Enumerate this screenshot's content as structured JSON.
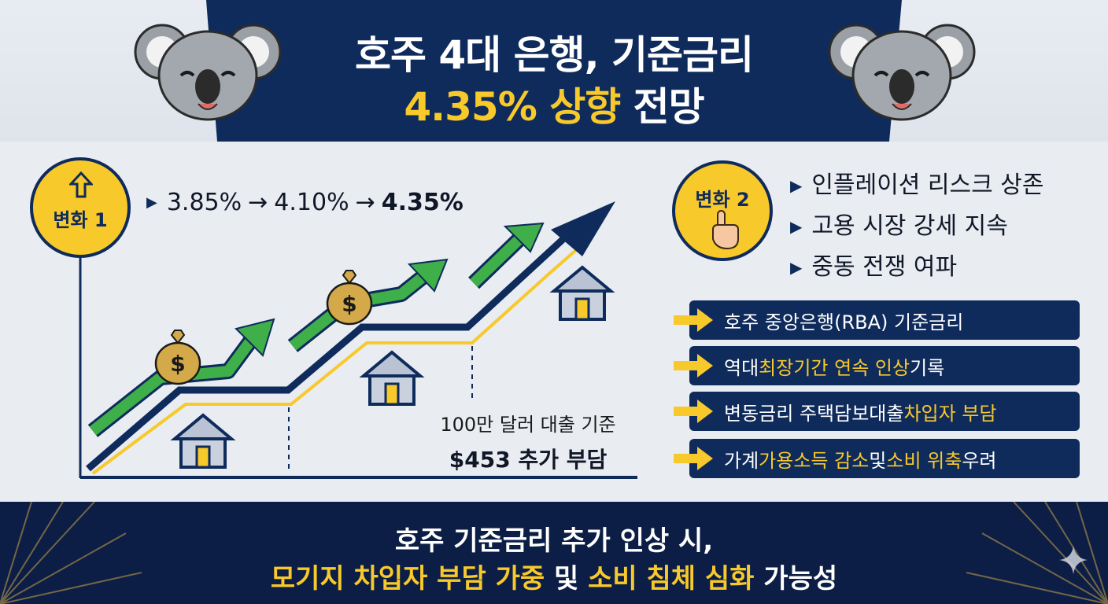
{
  "header": {
    "title_line1": "호주 4대 은행, 기준금리",
    "title_line2_highlight": "4.35% 상향",
    "title_line2_rest": " 전망"
  },
  "change1": {
    "badge_label": "변화 1",
    "rate_1": "3.85%",
    "arrow_1": "→",
    "rate_2": "4.10%",
    "arrow_2": "→",
    "rate_3": "4.35%",
    "loan_basis": "100만 달러 대출 기준",
    "extra_burden": "$453 추가 부담"
  },
  "change2": {
    "badge_label": "변화 2",
    "bullets": [
      "인플레이션 리스크 상존",
      "고용 시장 강세 지속",
      "중동 전쟁 여파"
    ]
  },
  "facts": [
    {
      "parts": [
        {
          "t": "호주 중앙은행(RBA) 기준금리",
          "hl": false
        }
      ]
    },
    {
      "parts": [
        {
          "t": "역대 ",
          "hl": false
        },
        {
          "t": "최장기간 연속 인상",
          "hl": true
        },
        {
          "t": " 기록",
          "hl": false
        }
      ]
    },
    {
      "parts": [
        {
          "t": "변동금리 주택담보대출 ",
          "hl": false
        },
        {
          "t": "차입자 부담",
          "hl": true
        }
      ]
    },
    {
      "parts": [
        {
          "t": "가계 ",
          "hl": false
        },
        {
          "t": "가용소득 감소",
          "hl": true
        },
        {
          "t": " 및 ",
          "hl": false
        },
        {
          "t": "소비 위축",
          "hl": true
        },
        {
          "t": " 우려",
          "hl": false
        }
      ]
    }
  ],
  "footer": {
    "line1": "호주 기준금리 추가 인상 시,",
    "line2_hl1": "모기지 차입자 부담 가중",
    "line2_mid": " 및 ",
    "line2_hl2": "소비 침체 심화",
    "line2_end": " 가능성"
  },
  "colors": {
    "navy": "#0f2b5c",
    "gold": "#f8c92a",
    "green": "#3faf4a",
    "footer_bg": "#0c1e45"
  },
  "icons": [
    "koala-icon",
    "up-arrow-icon",
    "pointing-hand-icon",
    "money-bag-icon",
    "house-icon",
    "right-arrow-icon",
    "sparkle-icon"
  ]
}
